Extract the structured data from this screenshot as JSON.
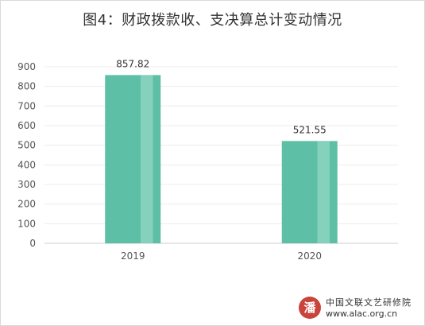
{
  "chart_data": {
    "type": "bar",
    "title": "图4：财政拨款收、支决算总计变动情况",
    "categories": [
      "2019",
      "2020"
    ],
    "values": [
      857.82,
      521.55
    ],
    "value_labels": [
      "857.82",
      "521.55"
    ],
    "ylim": [
      0,
      900
    ],
    "yticks": [
      0,
      100,
      200,
      300,
      400,
      500,
      600,
      700,
      800,
      900
    ],
    "xlabel": "",
    "ylabel": "",
    "grid": true,
    "legend": "none",
    "bar_color": "#5dbfa5",
    "bar_highlight_color": "#8dd3c0"
  },
  "watermark": {
    "seal": "潘",
    "name": "中国文联文艺研修院",
    "url": "www.alac.org.cn"
  }
}
